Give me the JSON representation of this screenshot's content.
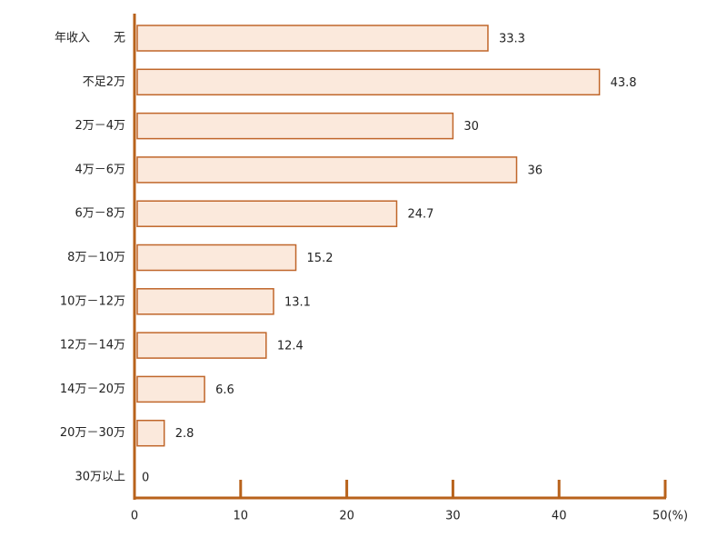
{
  "chart_data": {
    "type": "bar",
    "orientation": "horizontal",
    "categories": [
      "年收入　　无",
      "不足2万",
      "2万－4万",
      "4万－6万",
      "6万－8万",
      "8万－10万",
      "10万－12万",
      "12万－14万",
      "14万－20万",
      "20万－30万",
      "30万以上"
    ],
    "values": [
      33.3,
      43.8,
      30,
      36,
      24.7,
      15.2,
      13.1,
      12.4,
      6.6,
      2.8,
      0
    ],
    "color": "#fbe9dc",
    "edge_color": "#c0662a",
    "axis_color": "#b8621b",
    "xlim": [
      0,
      50
    ],
    "xticks": [
      0,
      10,
      20,
      30,
      40,
      {
        "value": 50,
        "label": "50(%)"
      }
    ]
  }
}
